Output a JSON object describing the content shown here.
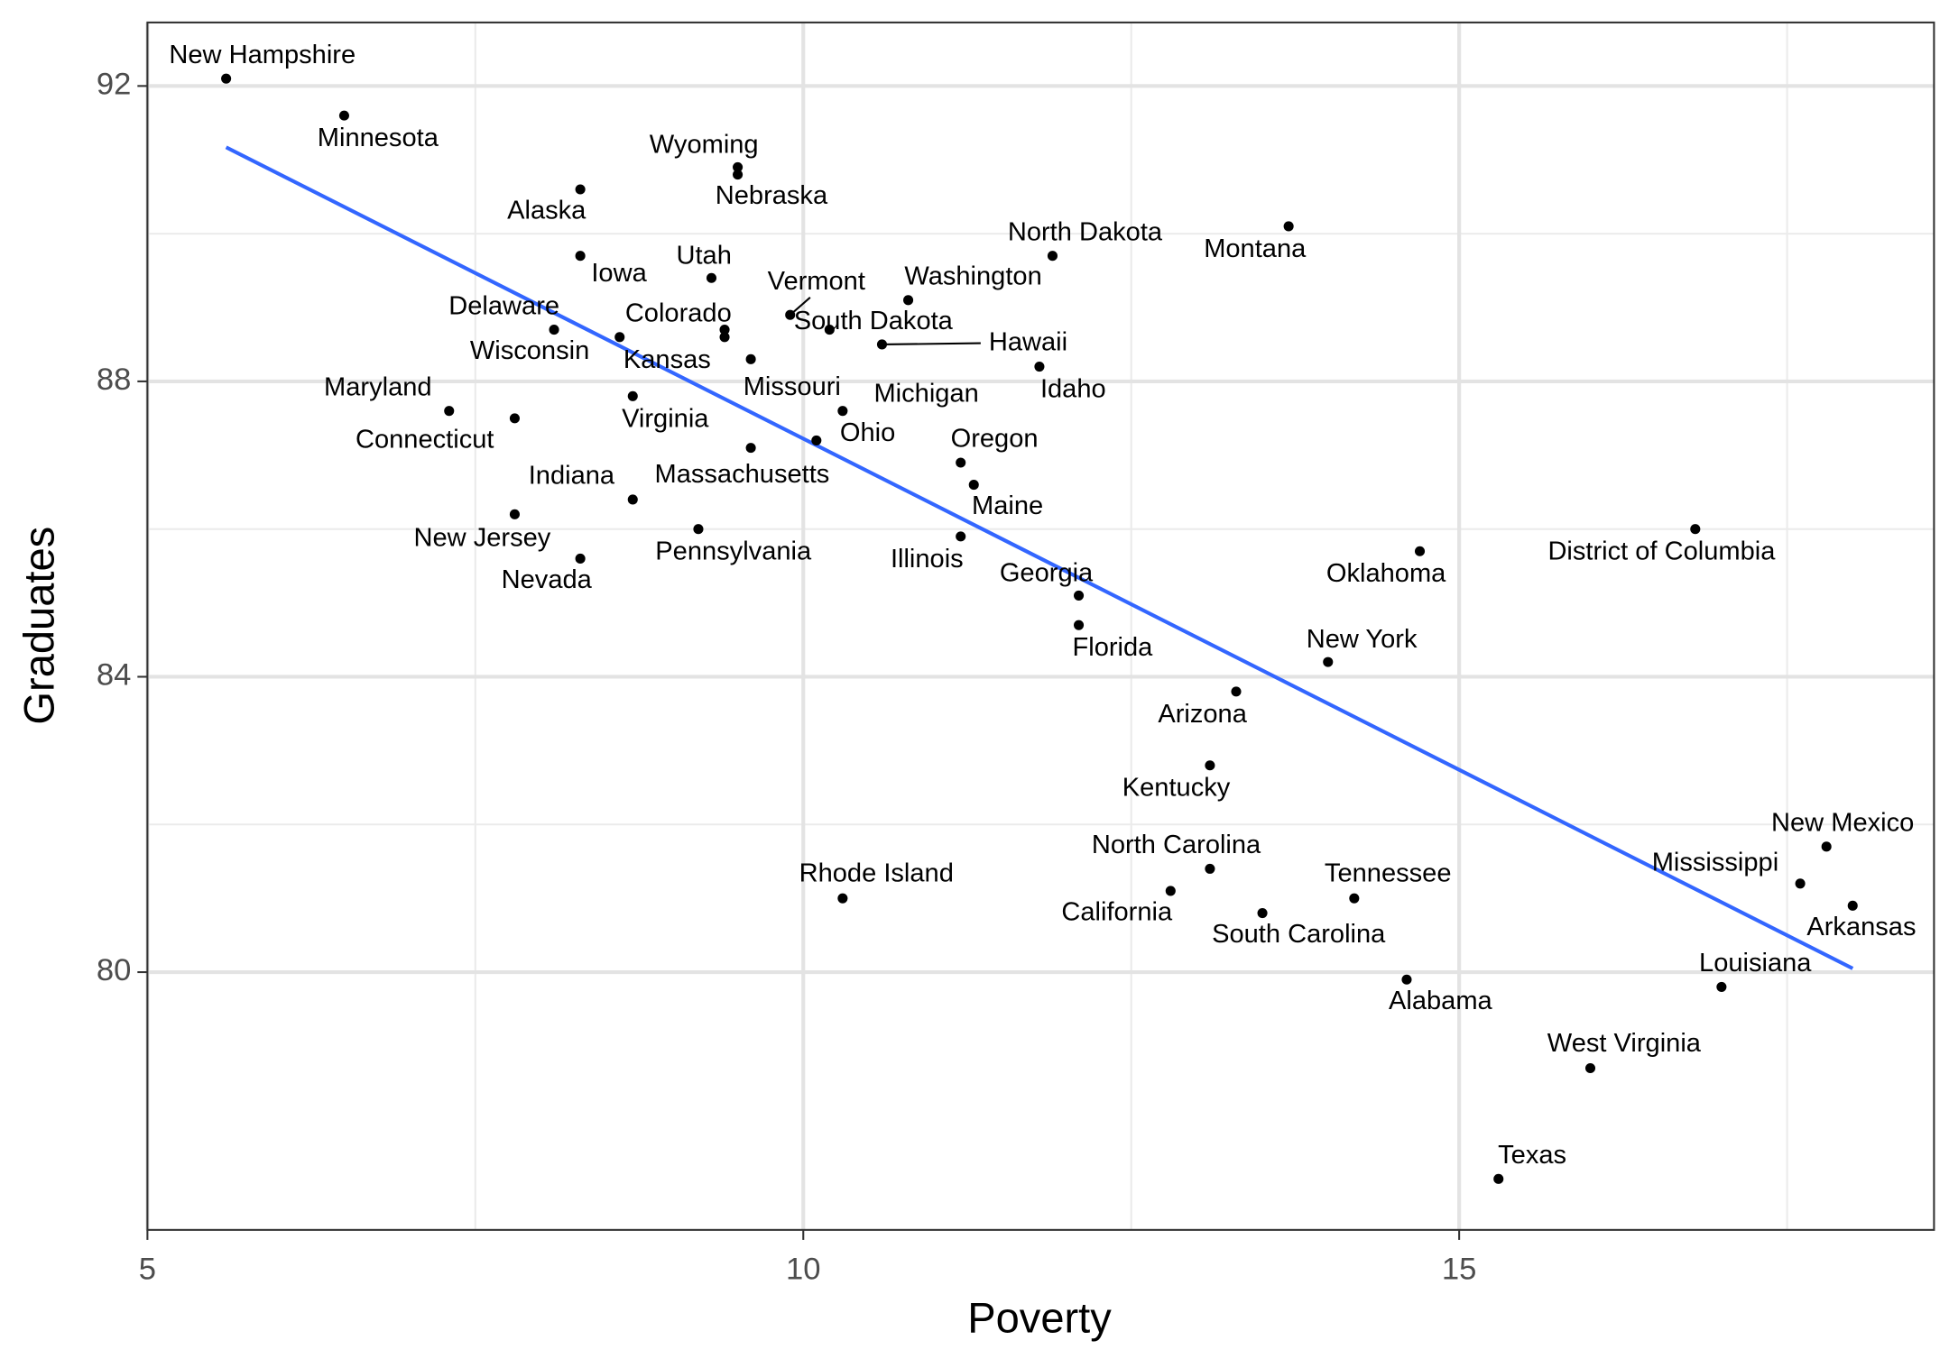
{
  "chart_data": {
    "type": "scatter",
    "x_label": "Poverty",
    "y_label": "Graduates",
    "xlim": [
      5,
      18.62
    ],
    "ylim": [
      76.51,
      92.86
    ],
    "xticks": [
      5,
      10,
      15
    ],
    "yticks": [
      80,
      84,
      88,
      92
    ],
    "x_minor_grid": [
      7.5,
      12.5,
      17.5
    ],
    "y_minor_grid": [
      82,
      86,
      90
    ],
    "grid": true,
    "point_color": "#000000",
    "labels": [
      "New Hampshire",
      "Minnesota",
      "Wyoming",
      "Nebraska",
      "Alaska",
      "Montana",
      "North Dakota",
      "Iowa",
      "Utah",
      "Washington",
      "Vermont",
      "South Dakota",
      "Colorado",
      "Delaware",
      "Wisconsin",
      "Kansas",
      "Hawaii",
      "Missouri",
      "Idaho",
      "Virginia",
      "Maryland",
      "Michigan",
      "Connecticut",
      "Ohio",
      "Massachusetts",
      "Oregon",
      "Maine",
      "Indiana",
      "New Jersey",
      "Pennsylvania",
      "District of Columbia",
      "Illinois",
      "Oklahoma",
      "Nevada",
      "Georgia",
      "Florida",
      "New York",
      "Arizona",
      "Kentucky",
      "New Mexico",
      "North Carolina",
      "Mississippi",
      "California",
      "Arkansas",
      "Rhode Island",
      "Tennessee",
      "South Carolina",
      "Alabama",
      "Louisiana",
      "West Virginia",
      "Texas"
    ],
    "x": [
      5.6,
      6.5,
      9.5,
      9.5,
      8.3,
      13.7,
      11.9,
      8.3,
      9.3,
      10.8,
      9.9,
      10.2,
      9.4,
      8.1,
      8.6,
      9.4,
      10.6,
      9.6,
      11.8,
      8.7,
      7.3,
      10.3,
      7.8,
      10.1,
      9.6,
      11.2,
      11.3,
      8.7,
      7.8,
      9.2,
      16.8,
      11.2,
      14.7,
      8.3,
      12.1,
      12.1,
      14.0,
      13.3,
      13.1,
      17.8,
      13.1,
      17.6,
      12.8,
      18.0,
      10.3,
      14.2,
      13.5,
      14.6,
      17.0,
      16.0,
      15.3
    ],
    "y": [
      92.1,
      91.6,
      90.9,
      90.8,
      90.6,
      90.1,
      89.7,
      89.7,
      89.4,
      89.1,
      88.9,
      88.7,
      88.7,
      88.7,
      88.6,
      88.6,
      88.5,
      88.3,
      88.2,
      87.8,
      87.6,
      87.6,
      87.5,
      87.2,
      87.1,
      86.9,
      86.6,
      86.4,
      86.2,
      86.0,
      86.0,
      85.9,
      85.7,
      85.6,
      85.1,
      84.7,
      84.2,
      83.8,
      82.8,
      81.7,
      81.4,
      81.2,
      81.1,
      80.9,
      81.0,
      81.0,
      80.8,
      79.9,
      79.8,
      78.7,
      77.2
    ],
    "trend": {
      "color": "#3366ff",
      "x": [
        5.6,
        18.0
      ],
      "y": [
        91.17,
        80.05
      ]
    }
  }
}
